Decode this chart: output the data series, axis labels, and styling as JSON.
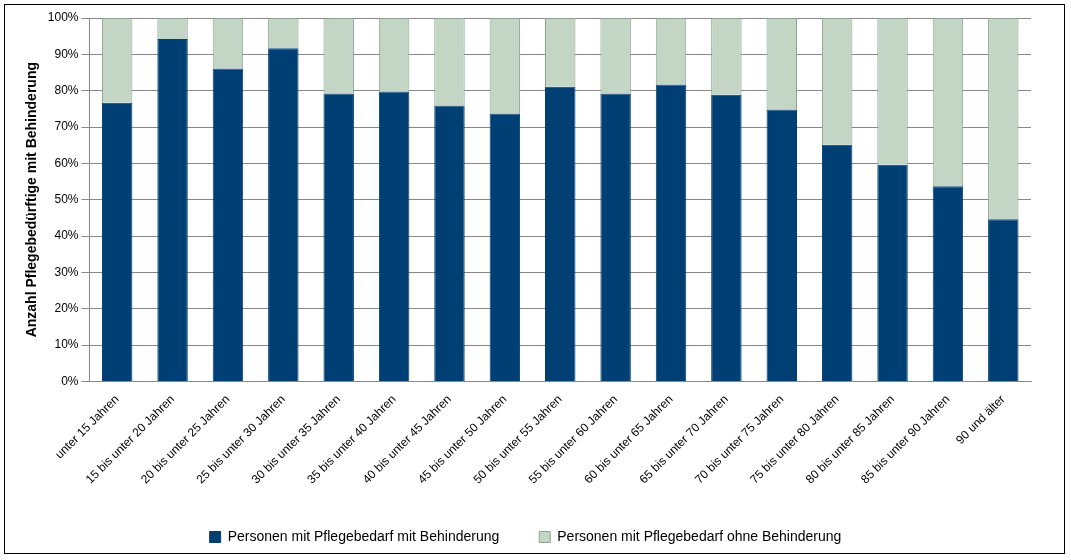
{
  "chart_data": {
    "type": "bar",
    "stacked": true,
    "ylabel": "Anzahl Pflegebedürftige mit Behinderung",
    "categories": [
      "unter 15 Jahren",
      "15 bis unter 20 Jahren",
      "20 bis unter 25 Jahren",
      "25 bis unter 30 Jahren",
      "30 bis unter 35 Jahren",
      "35 bis unter 40 Jahren",
      "40 bis unter 45 Jahren",
      "45 bis unter 50 Jahren",
      "50 bis unter 55 Jahren",
      "55 bis unter 60 Jahren",
      "60 bis unter 65 Jahren",
      "65 bis unter 70 Jahren",
      "70 bis unter 75 Jahren",
      "75 bis unter 80 Jahren",
      "80 bis unter 85 Jahren",
      "85 bis unter 90 Jahren",
      "90 und älter"
    ],
    "series": [
      {
        "name": "Personen mit Pflegebedarf mit Behinderung",
        "color": "#003f73",
        "values": [
          76.7,
          94.2,
          86.1,
          91.7,
          79.2,
          79.8,
          75.9,
          73.7,
          81.1,
          79.2,
          81.7,
          78.9,
          74.8,
          65.1,
          59.6,
          53.7,
          44.6
        ]
      },
      {
        "name": "Personen mit Pflegebedarf ohne Behinderung",
        "color": "#c3d5c5",
        "values": [
          23.3,
          5.8,
          13.9,
          8.3,
          20.8,
          20.2,
          24.1,
          26.3,
          18.9,
          20.8,
          18.3,
          21.1,
          25.2,
          34.9,
          40.4,
          46.3,
          55.4
        ]
      }
    ],
    "ylim": [
      0,
      100
    ],
    "yticks": [
      {
        "value": 0,
        "label": "0%"
      },
      {
        "value": 10,
        "label": "10%"
      },
      {
        "value": 20,
        "label": "20%"
      },
      {
        "value": 30,
        "label": "30%"
      },
      {
        "value": 40,
        "label": "40%"
      },
      {
        "value": 50,
        "label": "50%"
      },
      {
        "value": 60,
        "label": "60%"
      },
      {
        "value": 70,
        "label": "70%"
      },
      {
        "value": 80,
        "label": "80%"
      },
      {
        "value": 90,
        "label": "90%"
      },
      {
        "value": 100,
        "label": "100%"
      }
    ],
    "grid": "y",
    "legend": "bottom"
  }
}
